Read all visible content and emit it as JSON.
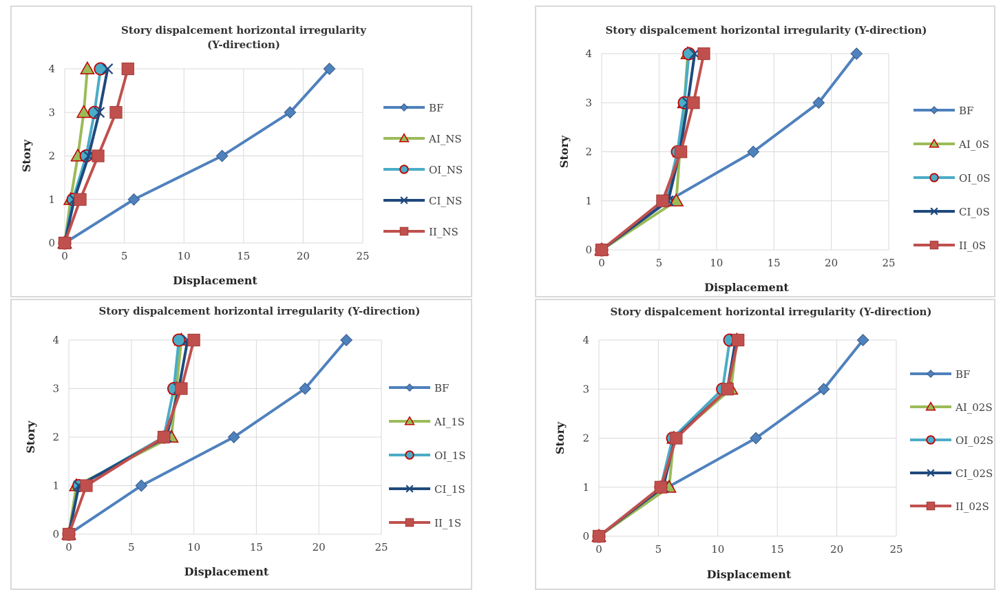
{
  "colors": {
    "BF": "#4f81bd",
    "AI": "#9bbb59",
    "OI": "#4bacc6",
    "CI": "#1f497d",
    "II": "#c0504d",
    "marker_red": "#c00000",
    "grid": "#d9d9d9"
  },
  "chart_data": [
    {
      "type": "line",
      "title": "Story dispalcement horizontal irregularity (Y-direction)",
      "title_lines": [
        "Story dispalcement horizontal irregularity",
        "(Y-direction)"
      ],
      "xlabel": "Displacement",
      "ylabel": "Story",
      "xlim": [
        0,
        25
      ],
      "ylim": [
        0,
        4
      ],
      "xticks": [
        0,
        5,
        10,
        15,
        20,
        25
      ],
      "yticks": [
        0,
        1,
        2,
        3,
        4
      ],
      "y": [
        0,
        1,
        2,
        3,
        4
      ],
      "grid": true,
      "legend": "right",
      "series": [
        {
          "name": "BF",
          "marker": "diamond",
          "x": [
            0,
            5.8,
            13.2,
            18.9,
            22.2
          ]
        },
        {
          "name": "AI_NS",
          "marker": "triangle",
          "x": [
            0,
            0.5,
            1.1,
            1.6,
            1.9
          ]
        },
        {
          "name": "OI_NS",
          "marker": "circle",
          "x": [
            0,
            0.7,
            1.8,
            2.5,
            3.0
          ]
        },
        {
          "name": "CI_NS",
          "marker": "x",
          "x": [
            0,
            0.8,
            2.0,
            2.9,
            3.6
          ]
        },
        {
          "name": "II_NS",
          "marker": "square",
          "x": [
            0,
            1.3,
            2.8,
            4.3,
            5.3
          ]
        }
      ]
    },
    {
      "type": "line",
      "title": "Story dispalcement horizontal irregularity (Y-direction)",
      "title_lines": [
        "Story dispalcement horizontal irregularity (Y-direction)"
      ],
      "xlabel": "Displacement",
      "ylabel": "Story",
      "xlim": [
        0,
        25
      ],
      "ylim": [
        0,
        4
      ],
      "xticks": [
        0,
        5,
        10,
        15,
        20,
        25
      ],
      "yticks": [
        0,
        1,
        2,
        3,
        4
      ],
      "y": [
        0,
        1,
        2,
        3,
        4
      ],
      "grid": true,
      "legend": "right",
      "series": [
        {
          "name": "BF",
          "marker": "diamond",
          "x": [
            0,
            5.8,
            13.2,
            18.9,
            22.2
          ]
        },
        {
          "name": "AI_0S",
          "marker": "triangle",
          "x": [
            0,
            6.5,
            6.8,
            7.2,
            7.5
          ]
        },
        {
          "name": "OI_0S",
          "marker": "circle",
          "x": [
            0,
            5.6,
            6.6,
            7.2,
            7.6
          ]
        },
        {
          "name": "CI_0S",
          "marker": "x",
          "x": [
            0,
            5.8,
            6.8,
            7.5,
            8.1
          ]
        },
        {
          "name": "II_0S",
          "marker": "square",
          "x": [
            0,
            5.3,
            6.9,
            8.0,
            8.9
          ]
        }
      ]
    },
    {
      "type": "line",
      "title": "Story dispalcement horizontal irregularity (Y-direction)",
      "title_lines": [
        "Story dispalcement horizontal irregularity (Y-direction)"
      ],
      "xlabel": "Displacement",
      "ylabel": "Story",
      "xlim": [
        0,
        25
      ],
      "ylim": [
        0,
        4
      ],
      "xticks": [
        0,
        5,
        10,
        15,
        20,
        25
      ],
      "yticks": [
        0,
        1,
        2,
        3,
        4
      ],
      "y": [
        0,
        1,
        2,
        3,
        4
      ],
      "grid": true,
      "legend": "right",
      "series": [
        {
          "name": "BF",
          "marker": "diamond",
          "x": [
            0,
            5.8,
            13.2,
            18.9,
            22.2
          ]
        },
        {
          "name": "AI_1S",
          "marker": "triangle",
          "x": [
            0,
            0.6,
            8.2,
            8.6,
            9.0
          ]
        },
        {
          "name": "OI_1S",
          "marker": "circle",
          "x": [
            0,
            0.8,
            7.6,
            8.4,
            8.8
          ]
        },
        {
          "name": "CI_1S",
          "marker": "x",
          "x": [
            0,
            0.8,
            7.8,
            8.8,
            9.5
          ]
        },
        {
          "name": "II_1S",
          "marker": "square",
          "x": [
            0,
            1.4,
            7.6,
            9.0,
            10.0
          ]
        }
      ]
    },
    {
      "type": "line",
      "title": "Story dispalcement horizontal irregularity (Y-direction)",
      "title_lines": [
        "Story dispalcement horizontal irregularity (Y-direction)"
      ],
      "xlabel": "Displacement",
      "ylabel": "Story",
      "xlim": [
        0,
        25
      ],
      "ylim": [
        0,
        4
      ],
      "xticks": [
        0,
        5,
        10,
        15,
        20,
        25
      ],
      "yticks": [
        0,
        1,
        2,
        3,
        4
      ],
      "y": [
        0,
        1,
        2,
        3,
        4
      ],
      "grid": true,
      "legend": "right",
      "series": [
        {
          "name": "BF",
          "marker": "diamond",
          "x": [
            0,
            5.8,
            13.2,
            18.9,
            22.2
          ]
        },
        {
          "name": "AI_02S",
          "marker": "triangle",
          "x": [
            0,
            5.9,
            6.3,
            11.1,
            11.6
          ]
        },
        {
          "name": "OI_02S",
          "marker": "circle",
          "x": [
            0,
            5.2,
            6.2,
            10.4,
            11.0
          ]
        },
        {
          "name": "CI_02S",
          "marker": "x",
          "x": [
            0,
            5.4,
            6.4,
            10.8,
            11.5
          ]
        },
        {
          "name": "II_02S",
          "marker": "square",
          "x": [
            0,
            5.2,
            6.5,
            10.8,
            11.7
          ]
        }
      ]
    }
  ]
}
